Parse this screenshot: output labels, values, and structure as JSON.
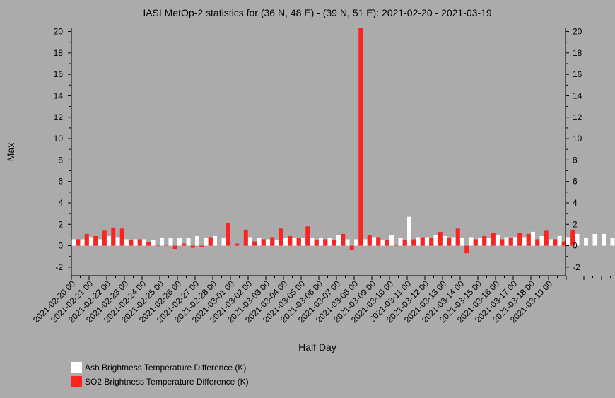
{
  "chart_data": {
    "type": "bar",
    "title": "IASI MetOp-2 statistics for (36 N, 48 E) - (39 N, 51 E): 2021-02-20 - 2021-03-19",
    "xlabel": "Half Day",
    "ylabel": "Max",
    "ylim": [
      -2.8,
      20.3
    ],
    "yticks": [
      -2,
      0,
      2,
      4,
      6,
      8,
      10,
      12,
      14,
      16,
      18,
      20
    ],
    "grid": false,
    "legend_position": "bottom-left",
    "x_tick_labels": [
      "2021-02-20 00",
      "2021-02-21 00",
      "2021-02-22 00",
      "2021-02-23 00",
      "2021-02-24 00",
      "2021-02-25 00",
      "2021-02-26 00",
      "2021-02-27 00",
      "2021-02-28 00",
      "2021-03-01 00",
      "2021-03-02 00",
      "2021-03-03 00",
      "2021-03-04 00",
      "2021-03-05 00",
      "2021-03-06 00",
      "2021-03-07 00",
      "2021-03-08 00",
      "2021-03-09 00",
      "2021-03-10 00",
      "2021-03-11 00",
      "2021-03-12 00",
      "2021-03-13 00",
      "2021-03-14 00",
      "2021-03-15 00",
      "2021-03-16 00",
      "2021-03-17 00",
      "2021-03-18 00",
      "2021-03-19 00"
    ],
    "series": [
      {
        "name": "Ash Brightness Temperature Difference (K)",
        "color": "#ffffff",
        "values": [
          0.6,
          0.6,
          0.8,
          0.6,
          0.9,
          0.8,
          0.6,
          0.6,
          0.6,
          0.5,
          0.7,
          0.7,
          0.7,
          0.7,
          0.9,
          0.7,
          0.9,
          0.7,
          null,
          null,
          0.8,
          0.7,
          0.6,
          0.5,
          0.7,
          0.7,
          0.7,
          0.7,
          0.7,
          0.7,
          1.0,
          0.6,
          0.6,
          0.6,
          0.8,
          0.5,
          1.0,
          0.7,
          2.7,
          0.8,
          0.8,
          1.0,
          0.9,
          0.8,
          0.7,
          0.8,
          0.7,
          0.7,
          1.0,
          0.8,
          0.8,
          0.8,
          1.3,
          0.9,
          0.6,
          0.9,
          0.8,
          1.1,
          0.7,
          1.1,
          1.1,
          0.7,
          1.0
        ]
      },
      {
        "name": "SO2 Brightness Temperature Difference (K)",
        "color": "#ff2222",
        "values": [
          0.6,
          1.1,
          0.9,
          1.4,
          1.7,
          1.6,
          0.5,
          0.6,
          0.3,
          0.0,
          0.0,
          -0.3,
          0.2,
          -0.2,
          -0.1,
          0.8,
          null,
          2.1,
          0.2,
          1.5,
          0.4,
          0.6,
          0.8,
          1.6,
          0.9,
          0.7,
          1.8,
          0.5,
          0.6,
          0.5,
          1.1,
          -0.4,
          20.3,
          1.0,
          0.8,
          0.5,
          0.1,
          0.5,
          0.6,
          0.8,
          0.7,
          1.3,
          0.7,
          1.6,
          -0.7,
          0.6,
          0.9,
          1.2,
          0.6,
          0.7,
          1.2,
          1.1,
          0.6,
          1.4,
          0.6,
          0.4,
          1.5,
          null,
          null,
          null,
          null,
          null,
          null
        ]
      }
    ]
  }
}
